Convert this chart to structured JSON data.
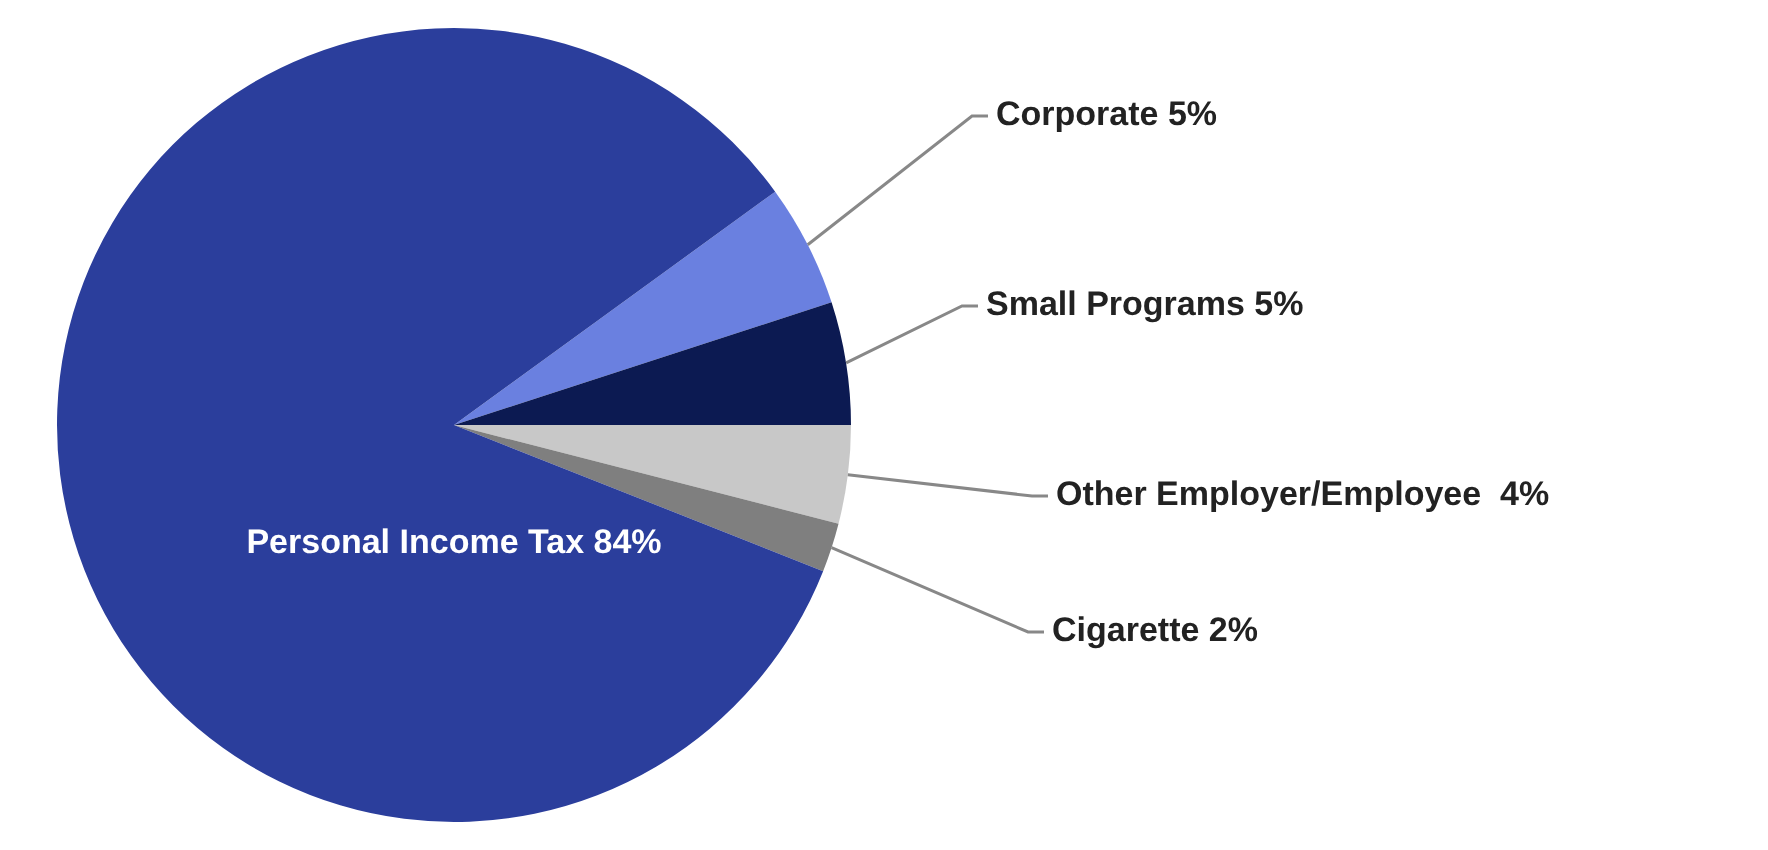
{
  "chart_data": {
    "type": "pie",
    "categories": [
      "Corporate",
      "Small Programs",
      "Other Employer/Employee ",
      "Cigarette",
      "Personal Income Tax"
    ],
    "values": [
      5,
      5,
      4,
      2,
      84
    ],
    "colors": [
      "#6a80e0",
      "#0c1a52",
      "#c8c8c8",
      "#7f7f7f",
      "#2b3e9c"
    ],
    "value_labels": [
      "5%",
      "5%",
      "4%",
      "2%",
      "84%"
    ]
  }
}
